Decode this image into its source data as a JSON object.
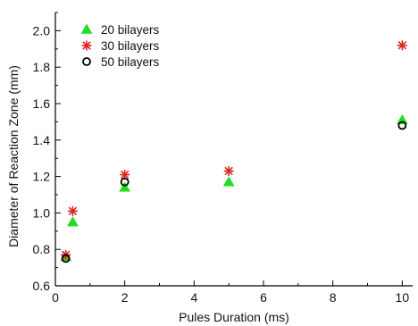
{
  "chart_data": {
    "type": "scatter",
    "title": "",
    "xlabel": "Pules Duration (ms)",
    "ylabel": "Diameter of Reaction Zone (mm)",
    "xlim": [
      0,
      10.3
    ],
    "ylim": [
      0.6,
      2.1
    ],
    "xticks": [
      0,
      2,
      4,
      6,
      8,
      10
    ],
    "yticks": [
      0.6,
      0.8,
      1.0,
      1.2,
      1.4,
      1.6,
      1.8,
      2.0
    ],
    "xtick_labels": [
      "0",
      "2",
      "4",
      "6",
      "8",
      "10"
    ],
    "ytick_labels": [
      "0.6",
      "0.8",
      "1.0",
      "1.2",
      "1.4",
      "1.6",
      "1.8",
      "2.0"
    ],
    "grid": false,
    "legend_position": "top-left",
    "series": [
      {
        "name": "20 bilayers",
        "marker": "triangle",
        "color": "#22dd22",
        "x": [
          0.3,
          0.5,
          2,
          5,
          10
        ],
        "y": [
          0.76,
          0.95,
          1.14,
          1.17,
          1.51
        ]
      },
      {
        "name": "30 bilayers",
        "marker": "asterisk",
        "color": "#dd2222",
        "x": [
          0.3,
          0.5,
          2,
          5,
          10
        ],
        "y": [
          0.77,
          1.01,
          1.21,
          1.23,
          1.92
        ]
      },
      {
        "name": "50 bilayers",
        "marker": "circle",
        "color": "#000000",
        "x": [
          0.3,
          2,
          10
        ],
        "y": [
          0.75,
          1.17,
          1.48
        ]
      }
    ]
  }
}
